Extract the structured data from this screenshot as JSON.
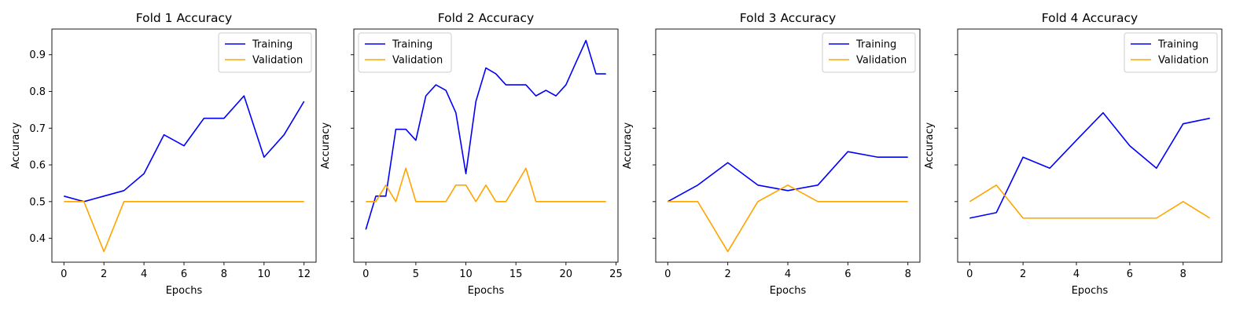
{
  "chart_data": [
    {
      "type": "line",
      "title": "Fold 1 Accuracy",
      "xlabel": "Epochs",
      "ylabel": "Accuracy",
      "x": [
        0,
        1,
        2,
        3,
        4,
        5,
        6,
        7,
        8,
        9,
        10,
        11,
        12
      ],
      "xlim": [
        -0.6,
        12.6
      ],
      "ylim": [
        0.335,
        0.97
      ],
      "xticks": [
        0,
        2,
        4,
        6,
        8,
        10,
        12
      ],
      "yticks": [
        0.4,
        0.5,
        0.6,
        0.7,
        0.8,
        0.9
      ],
      "show_ytick_labels": true,
      "legend": "top-right",
      "grid": false,
      "series": [
        {
          "name": "Training",
          "color": "#0000ff",
          "values": [
            0.515,
            0.5,
            0.515,
            0.53,
            0.576,
            0.682,
            0.652,
            0.727,
            0.727,
            0.788,
            0.621,
            0.682,
            0.773
          ]
        },
        {
          "name": "Validation",
          "color": "#ffa500",
          "values": [
            0.5,
            0.5,
            0.364,
            0.5,
            0.5,
            0.5,
            0.5,
            0.5,
            0.5,
            0.5,
            0.5,
            0.5,
            0.5
          ]
        }
      ]
    },
    {
      "type": "line",
      "title": "Fold 2 Accuracy",
      "xlabel": "Epochs",
      "ylabel": "Accuracy",
      "x": [
        0,
        1,
        2,
        3,
        4,
        5,
        6,
        7,
        8,
        9,
        10,
        11,
        12,
        13,
        14,
        15,
        16,
        17,
        18,
        19,
        20,
        21,
        22,
        23,
        24
      ],
      "xlim": [
        -1.2,
        25.2
      ],
      "ylim": [
        0.335,
        0.97
      ],
      "xticks": [
        0,
        5,
        10,
        15,
        20,
        25
      ],
      "yticks": [
        0.4,
        0.5,
        0.6,
        0.7,
        0.8,
        0.9
      ],
      "show_ytick_labels": false,
      "legend": "top-left",
      "grid": false,
      "series": [
        {
          "name": "Training",
          "color": "#0000ff",
          "values": [
            0.424,
            0.515,
            0.515,
            0.697,
            0.697,
            0.667,
            0.788,
            0.818,
            0.803,
            0.742,
            0.576,
            0.773,
            0.864,
            0.848,
            0.818,
            0.818,
            0.818,
            0.788,
            0.803,
            0.788,
            0.818,
            0.879,
            0.939,
            0.848,
            0.848
          ]
        },
        {
          "name": "Validation",
          "color": "#ffa500",
          "values": [
            0.5,
            0.5,
            0.545,
            0.5,
            0.591,
            0.5,
            0.5,
            0.5,
            0.5,
            0.545,
            0.545,
            0.5,
            0.545,
            0.5,
            0.5,
            0.545,
            0.591,
            0.5,
            0.5,
            0.5,
            0.5,
            0.5,
            0.5,
            0.5,
            0.5
          ]
        }
      ]
    },
    {
      "type": "line",
      "title": "Fold 3 Accuracy",
      "xlabel": "Epochs",
      "ylabel": "Accuracy",
      "x": [
        0,
        1,
        2,
        3,
        4,
        5,
        6,
        7,
        8
      ],
      "xlim": [
        -0.4,
        8.4
      ],
      "ylim": [
        0.335,
        0.97
      ],
      "xticks": [
        0,
        2,
        4,
        6,
        8
      ],
      "yticks": [
        0.4,
        0.5,
        0.6,
        0.7,
        0.8,
        0.9
      ],
      "show_ytick_labels": false,
      "legend": "top-right",
      "grid": false,
      "series": [
        {
          "name": "Training",
          "color": "#0000ff",
          "values": [
            0.5,
            0.545,
            0.606,
            0.545,
            0.53,
            0.545,
            0.636,
            0.621,
            0.621
          ]
        },
        {
          "name": "Validation",
          "color": "#ffa500",
          "values": [
            0.5,
            0.5,
            0.364,
            0.5,
            0.545,
            0.5,
            0.5,
            0.5,
            0.5
          ]
        }
      ]
    },
    {
      "type": "line",
      "title": "Fold 4 Accuracy",
      "xlabel": "Epochs",
      "ylabel": "Accuracy",
      "x": [
        0,
        1,
        2,
        3,
        4,
        5,
        6,
        7,
        8,
        9
      ],
      "xlim": [
        -0.45,
        9.45
      ],
      "ylim": [
        0.335,
        0.97
      ],
      "xticks": [
        0,
        2,
        4,
        6,
        8
      ],
      "yticks": [
        0.4,
        0.5,
        0.6,
        0.7,
        0.8,
        0.9
      ],
      "show_ytick_labels": false,
      "legend": "top-right",
      "grid": false,
      "series": [
        {
          "name": "Training",
          "color": "#0000ff",
          "values": [
            0.455,
            0.47,
            0.621,
            0.591,
            0.667,
            0.742,
            0.652,
            0.591,
            0.712,
            0.727
          ]
        },
        {
          "name": "Validation",
          "color": "#ffa500",
          "values": [
            0.5,
            0.545,
            0.455,
            0.455,
            0.455,
            0.455,
            0.455,
            0.455,
            0.5,
            0.455
          ]
        }
      ]
    }
  ]
}
